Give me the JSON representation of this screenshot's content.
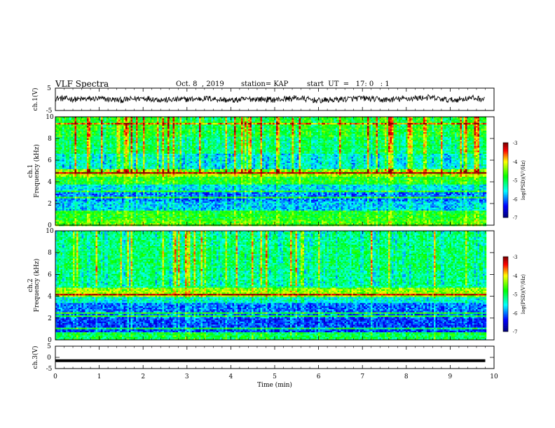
{
  "header": {
    "title": "VLF Spectra",
    "date": "Oct. 8  , 2019",
    "station": "station= KAP",
    "start": "start  UT  =   17: 0   : 1"
  },
  "colors": {
    "waveform": "#000000",
    "colormap": [
      "#000080",
      "#0000ff",
      "#00ffff",
      "#00ff00",
      "#ffff00",
      "#ff0000",
      "#800000"
    ]
  },
  "chart_data": [
    {
      "type": "line",
      "title": "",
      "xlabel": "",
      "ylabel": "ch.1(V)",
      "ylim": [
        -5,
        5
      ],
      "yticks": [
        "5",
        "-5"
      ],
      "xlim": [
        0,
        10
      ],
      "series": [
        {
          "values_description_only": false,
          "x": [
            0,
            0.5,
            1,
            1.5,
            2,
            2.5,
            3,
            3.5,
            4,
            4.5,
            5,
            5.5,
            6,
            6.5,
            7,
            7.5,
            8,
            8.5,
            9,
            9.5,
            9.8
          ],
          "values": [
            0.5,
            0,
            0.3,
            -0.4,
            0.6,
            -0.3,
            0,
            0.4,
            -0.5,
            0.2,
            -0.2,
            0.6,
            -0.6,
            0,
            0.5,
            -0.3,
            0.3,
            0.8,
            -0.4,
            0.6,
            0
          ]
        }
      ]
    },
    {
      "type": "heatmap",
      "title": "",
      "xlabel": "",
      "ylabel": "ch.1",
      "ylabel2": "Frequency  (kHz)",
      "ylim": [
        0,
        10
      ],
      "yticks": [
        "0",
        "2",
        "4",
        "6",
        "8",
        "10"
      ],
      "xlim": [
        0,
        10
      ],
      "colorbar": {
        "label": "log(PSD)(V²/Hz)",
        "ticks": [
          "-3",
          "-4",
          "-5",
          "-6",
          "-7"
        ],
        "range": [
          -7,
          -3
        ]
      },
      "bands": [
        {
          "f": [
            0,
            0.6
          ],
          "level": 0.6
        },
        {
          "f": [
            0.6,
            1.4
          ],
          "level": 0.55
        },
        {
          "f": [
            1.4,
            2.2
          ],
          "level": 0.32
        },
        {
          "f": [
            2.2,
            3.2
          ],
          "level": 0.25
        },
        {
          "f": [
            3.2,
            3.8
          ],
          "level": 0.35
        },
        {
          "f": [
            3.8,
            4.6
          ],
          "level": 0.55
        },
        {
          "f": [
            4.6,
            5.3
          ],
          "level": 0.68
        },
        {
          "f": [
            5.3,
            6.6
          ],
          "level": 0.4
        },
        {
          "f": [
            6.6,
            8.2
          ],
          "level": 0.5
        },
        {
          "f": [
            8.2,
            10
          ],
          "level": 0.56
        }
      ]
    },
    {
      "type": "heatmap",
      "title": "",
      "xlabel": "",
      "ylabel": "ch.2",
      "ylabel2": "Frequency  (kHz)",
      "ylim": [
        0,
        10
      ],
      "yticks": [
        "0",
        "2",
        "4",
        "6",
        "8",
        "10"
      ],
      "xlim": [
        0,
        10
      ],
      "colorbar": {
        "label": "log(PSD)(V²/Hz)",
        "ticks": [
          "-3",
          "-4",
          "-5",
          "-6",
          "-7"
        ],
        "range": [
          -7,
          -3
        ]
      },
      "bands": [
        {
          "f": [
            0,
            0.8
          ],
          "level": 0.5
        },
        {
          "f": [
            0.8,
            2.0
          ],
          "level": 0.2
        },
        {
          "f": [
            2.0,
            3.4
          ],
          "level": 0.24
        },
        {
          "f": [
            3.4,
            4.0
          ],
          "level": 0.38
        },
        {
          "f": [
            4.0,
            4.8
          ],
          "level": 0.66
        },
        {
          "f": [
            4.8,
            6.4
          ],
          "level": 0.45
        },
        {
          "f": [
            6.4,
            8.5
          ],
          "level": 0.48
        },
        {
          "f": [
            8.5,
            10
          ],
          "level": 0.46
        }
      ]
    },
    {
      "type": "line",
      "title": "",
      "xlabel": "Time  (min)",
      "ylabel": "ch.3(V)",
      "ylim": [
        -5,
        5
      ],
      "yticks": [
        "5",
        "0",
        "-5"
      ],
      "xlim": [
        0,
        10
      ],
      "xticks": [
        "0",
        "1",
        "2",
        "3",
        "4",
        "5",
        "6",
        "7",
        "8",
        "9",
        "10"
      ],
      "series": [
        {
          "x": [
            0,
            9.8
          ],
          "values": [
            -1.5,
            -1.5
          ]
        }
      ]
    }
  ]
}
